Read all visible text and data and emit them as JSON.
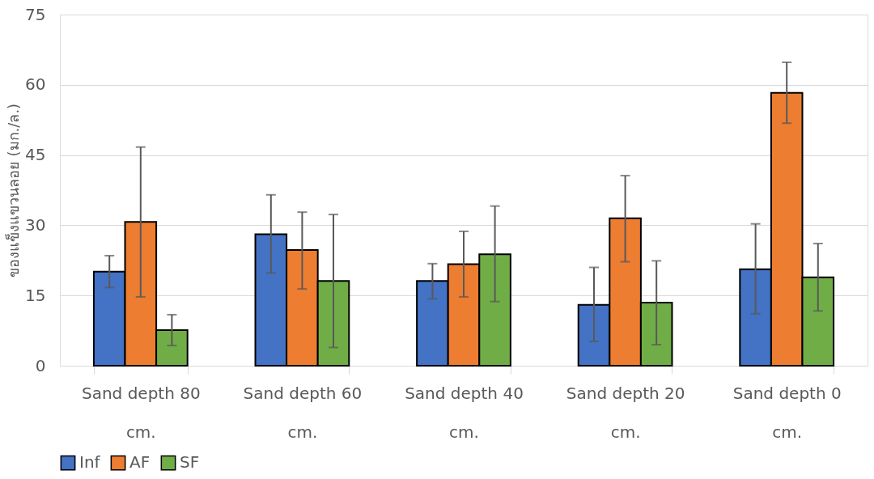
{
  "chart_data": {
    "type": "bar",
    "ylabel": "ของแข็งแขวนลอย (มก./ล.)",
    "categories": [
      "Sand depth 80 cm.",
      "Sand depth 60 cm.",
      "Sand depth 40 cm.",
      "Sand depth 20 cm.",
      "Sand depth 0 cm."
    ],
    "series": [
      {
        "name": "Inf",
        "color": "#4472c4",
        "values": [
          20.1,
          28.1,
          18.1,
          13.0,
          20.6
        ],
        "errors": [
          [
            16.7,
            23.5
          ],
          [
            19.8,
            36.5
          ],
          [
            14.3,
            21.8
          ],
          [
            5.2,
            21.0
          ],
          [
            11.1,
            30.3
          ]
        ]
      },
      {
        "name": "AF",
        "color": "#ed7d31",
        "values": [
          30.7,
          24.7,
          21.7,
          31.5,
          58.3
        ],
        "errors": [
          [
            14.7,
            46.7
          ],
          [
            16.4,
            32.8
          ],
          [
            14.7,
            28.7
          ],
          [
            22.2,
            40.6
          ],
          [
            51.8,
            64.8
          ]
        ]
      },
      {
        "name": "SF",
        "color": "#70ad47",
        "values": [
          7.6,
          18.1,
          23.8,
          13.5,
          18.9
        ],
        "errors": [
          [
            4.3,
            10.9
          ],
          [
            3.9,
            32.3
          ],
          [
            13.7,
            34.1
          ],
          [
            4.5,
            22.4
          ],
          [
            11.7,
            26.1
          ]
        ]
      }
    ],
    "ylim": [
      0,
      75
    ],
    "yticks": [
      0,
      15,
      30,
      45,
      60,
      75
    ],
    "grid": "y",
    "legend": "bottom"
  }
}
